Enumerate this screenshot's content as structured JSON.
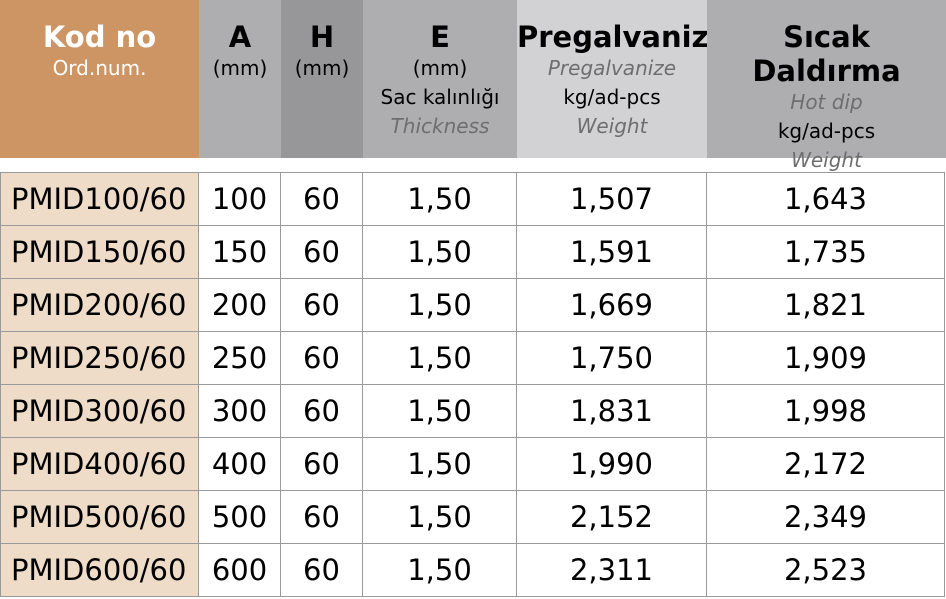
{
  "header": {
    "kod": {
      "title": "Kod no",
      "sub": "Ord.num."
    },
    "a": {
      "title": "A",
      "unit": "(mm)"
    },
    "h": {
      "title": "H",
      "unit": "(mm)"
    },
    "e": {
      "title": "E",
      "unit": "(mm)",
      "tr": "Sac kalınlığı",
      "en": "Thickness"
    },
    "pre": {
      "title": "Pregalvaniz",
      "en": "Pregalvanize",
      "unit": "kg/ad-pcs",
      "weight": "Weight"
    },
    "sic": {
      "title": "Sıcak Daldırma",
      "en": "Hot dip",
      "unit": "kg/ad-pcs",
      "weight": "Weight"
    }
  },
  "rows": [
    {
      "code": "PMID100/60",
      "a": "100",
      "h": "60",
      "e": "1,50",
      "pre": "1,507",
      "sic": "1,643"
    },
    {
      "code": "PMID150/60",
      "a": "150",
      "h": "60",
      "e": "1,50",
      "pre": "1,591",
      "sic": "1,735"
    },
    {
      "code": "PMID200/60",
      "a": "200",
      "h": "60",
      "e": "1,50",
      "pre": "1,669",
      "sic": "1,821"
    },
    {
      "code": "PMID250/60",
      "a": "250",
      "h": "60",
      "e": "1,50",
      "pre": "1,750",
      "sic": "1,909"
    },
    {
      "code": "PMID300/60",
      "a": "300",
      "h": "60",
      "e": "1,50",
      "pre": "1,831",
      "sic": "1,998"
    },
    {
      "code": "PMID400/60",
      "a": "400",
      "h": "60",
      "e": "1,50",
      "pre": "1,990",
      "sic": "2,172"
    },
    {
      "code": "PMID500/60",
      "a": "500",
      "h": "60",
      "e": "1,50",
      "pre": "2,152",
      "sic": "2,349"
    },
    {
      "code": "PMID600/60",
      "a": "600",
      "h": "60",
      "e": "1,50",
      "pre": "2,311",
      "sic": "2,523"
    }
  ],
  "colors": {
    "code_header": "#cc9563",
    "code_cell": "#efdcc8",
    "header_gray": "#aeaeb1",
    "header_dark": "#97979a",
    "header_light": "#d2d2d4"
  }
}
